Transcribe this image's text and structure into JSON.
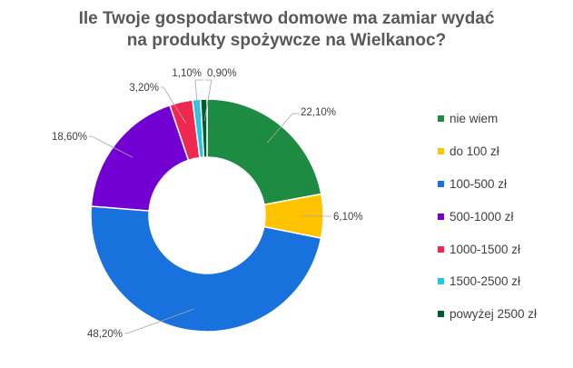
{
  "chart_data": {
    "type": "pie",
    "variant": "donut",
    "title_lines": [
      "Ile Twoje gospodarstwo domowe ma zamiar wydać",
      "na produkty spożywcze na Wielkanoc?"
    ],
    "categories": [
      "nie wiem",
      "do 100 zł",
      "100-500 zł",
      "500-1000 zł",
      "1000-1500 zł",
      "1500-2500 zł",
      "powyżej 2500 zł"
    ],
    "values": [
      22.1,
      6.1,
      48.2,
      18.6,
      3.2,
      1.1,
      0.9
    ],
    "value_labels": [
      "22,10%",
      "6,10%",
      "48,20%",
      "18,60%",
      "3,20%",
      "1,10%",
      "0,90%"
    ],
    "colors": [
      "#1E8B43",
      "#FFC300",
      "#1971DE",
      "#7300D2",
      "#F0274F",
      "#21C6E8",
      "#005C2E"
    ],
    "legend_position": "right"
  }
}
